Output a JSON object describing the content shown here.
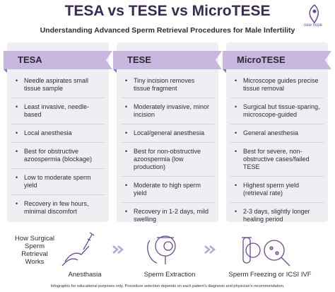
{
  "header": {
    "title": "TESA vs TESE vs MicroTESE",
    "subtitle": "Understanding Advanced Sperm Retrieval Procedures for Male Infertility",
    "logo": "new hope"
  },
  "columns": [
    {
      "title": "TESA",
      "items": [
        "Needle aspirates small tissue sample",
        "Least invasive, needle-based",
        "Local anesthesia",
        "Best for obstructive azoospermia (blockage)",
        "Low to moderate sperm yield",
        "Recovery in few hours, minimal discomfort"
      ]
    },
    {
      "title": "TESE",
      "items": [
        "Tiny incision removes tissue fragment",
        "Moderately invasive, minor incision",
        "Local/general anesthesia",
        "Best for non-obstructive azoospermia (low production)",
        "Moderate to high sperm yield",
        "Recovery in 1-2 days, mild swelling"
      ]
    },
    {
      "title": "MicroTESE",
      "items": [
        "Microscope guides precise tissue removal",
        "Surgical but tissue-sparing, microscope-guided",
        "General anesthesia",
        "Best for severe, non-obstructive cases/failed TESE",
        "Highest sperm yield (retrieval rate)",
        "2-3 days, slightly longer healing period"
      ]
    }
  ],
  "process": {
    "title": "How Surgical Sperm Retrieval Works",
    "steps": [
      "Anesthasia",
      "Sperm Extraction",
      "Sperm Freezing or ICSI IVF"
    ]
  },
  "footnote": "Infographic for educational purposes only. Procedure selection depends on each patient's diagnosis and physician's recommendation."
}
